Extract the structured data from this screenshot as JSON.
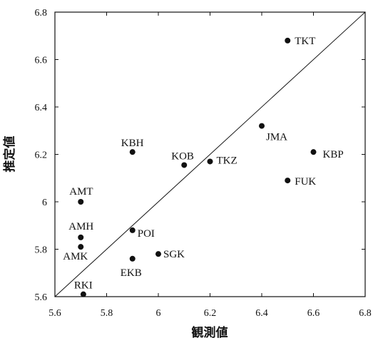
{
  "chart_data": {
    "type": "scatter",
    "title": "",
    "xlabel": "観測値",
    "ylabel": "推定値",
    "xlim": [
      5.6,
      6.8
    ],
    "ylim": [
      5.6,
      6.8
    ],
    "x_ticks": [
      "5.6",
      "5.8",
      "6",
      "6.2",
      "6.4",
      "6.6",
      "6.8"
    ],
    "y_ticks": [
      "5.6",
      "5.8",
      "6",
      "6.2",
      "6.4",
      "6.6",
      "6.8"
    ],
    "grid": false,
    "legend": "none",
    "reference_line": {
      "type": "y=x"
    },
    "point_color": "#111111",
    "points": [
      {
        "label": "TKT",
        "x": 6.5,
        "y": 6.68
      },
      {
        "label": "JMA",
        "x": 6.4,
        "y": 6.32
      },
      {
        "label": "KBP",
        "x": 6.6,
        "y": 6.21
      },
      {
        "label": "FUK",
        "x": 6.5,
        "y": 6.09
      },
      {
        "label": "TKZ",
        "x": 6.2,
        "y": 6.17
      },
      {
        "label": "KOB",
        "x": 6.1,
        "y": 6.155
      },
      {
        "label": "KBH",
        "x": 5.9,
        "y": 6.21
      },
      {
        "label": "AMT",
        "x": 5.7,
        "y": 6.0
      },
      {
        "label": "AMH",
        "x": 5.7,
        "y": 5.85
      },
      {
        "label": "AMK",
        "x": 5.7,
        "y": 5.81
      },
      {
        "label": "POI",
        "x": 5.9,
        "y": 5.88
      },
      {
        "label": "SGK",
        "x": 6.0,
        "y": 5.78
      },
      {
        "label": "EKB",
        "x": 5.9,
        "y": 5.76
      },
      {
        "label": "RKI",
        "x": 5.71,
        "y": 5.61
      }
    ]
  }
}
